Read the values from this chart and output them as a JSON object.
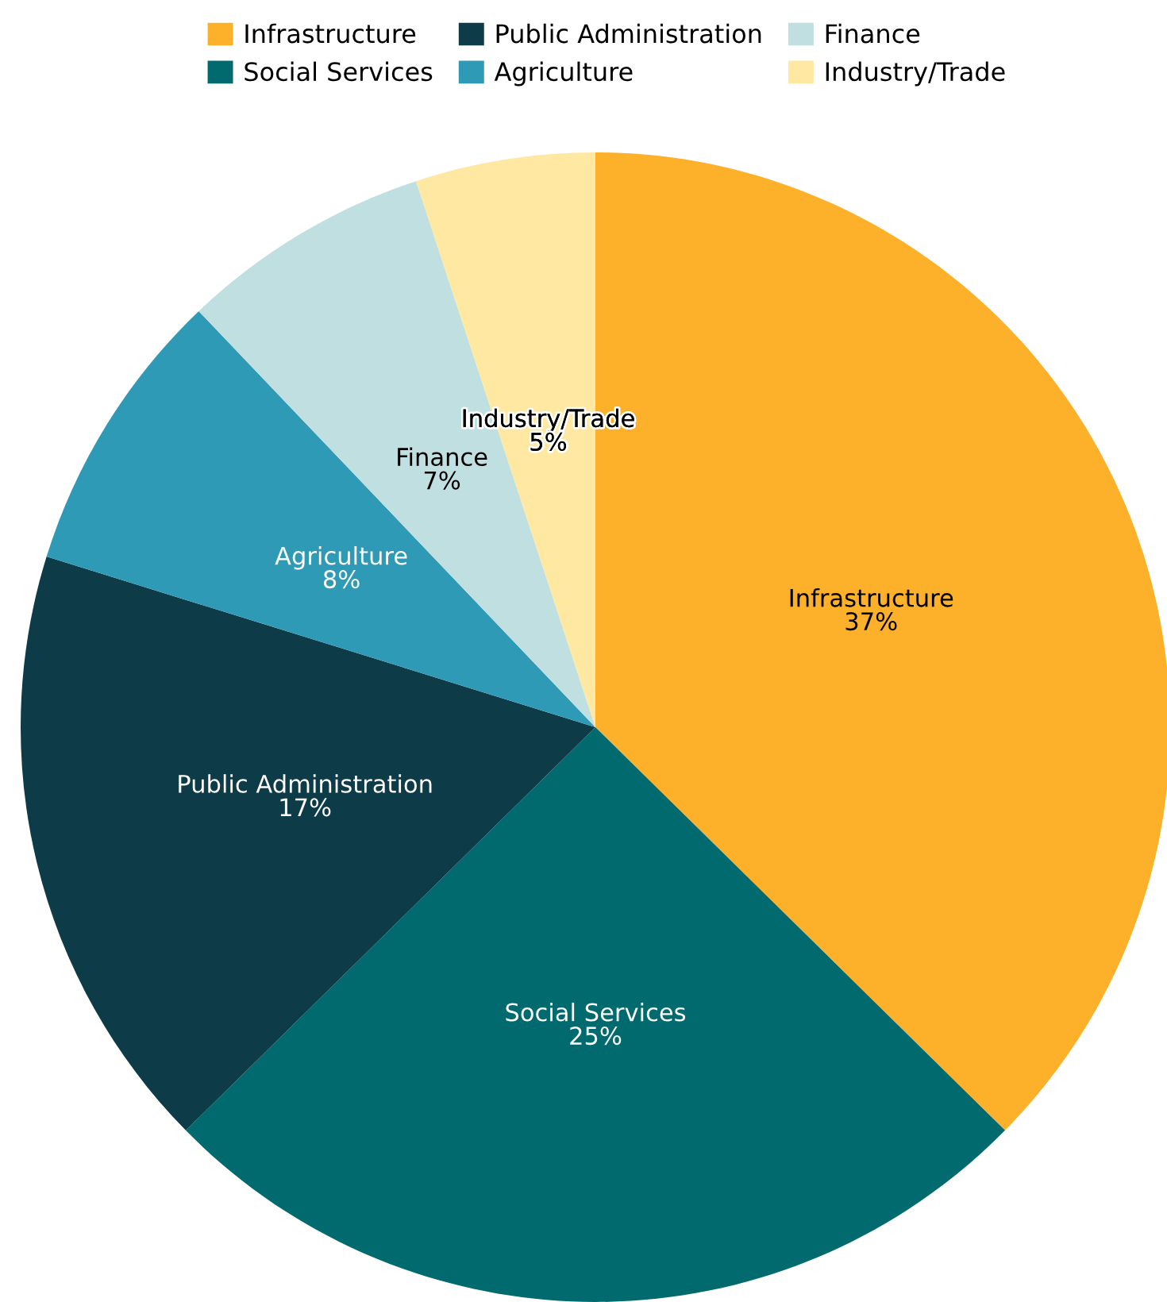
{
  "chart_data": {
    "type": "pie",
    "categories": [
      "Infrastructure",
      "Social Services",
      "Public Administration",
      "Agriculture",
      "Finance",
      "Industry/Trade"
    ],
    "values": [
      37,
      25,
      17,
      8,
      7,
      5
    ],
    "value_labels": [
      "37%",
      "25%",
      "17%",
      "8%",
      "7%",
      "5%"
    ],
    "colors": [
      "#fdb12a",
      "#006a6e",
      "#0d3b48",
      "#2e9ab5",
      "#c0dfe0",
      "#fee8a2"
    ],
    "legend": "top"
  }
}
